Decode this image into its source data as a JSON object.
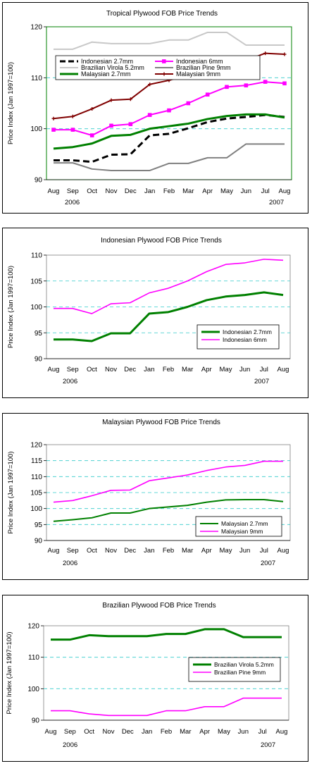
{
  "chart_data": [
    {
      "type": "line",
      "title": "Tropical Plywood FOB Price Trends",
      "ylabel": "Price Index (Jan 1997=100)",
      "xlabel": "",
      "categories": [
        "Aug",
        "Sep",
        "Oct",
        "Nov",
        "Dec",
        "Jan",
        "Feb",
        "Mar",
        "Apr",
        "May",
        "Jun",
        "Jul",
        "Aug"
      ],
      "year_labels": [
        "2006",
        "2007"
      ],
      "ylim": [
        90,
        120
      ],
      "yticks": [
        90,
        100,
        110,
        120
      ],
      "grid": "horizontal dashed",
      "legend_position": "top-left",
      "plot_background": "#ffffff",
      "plot_border": "#008000",
      "series": [
        {
          "name": "Indonesian 2.7mm",
          "color": "#000000",
          "dash": "long-dash",
          "marker": "none",
          "values": [
            93.8,
            93.8,
            93.5,
            94.9,
            95.0,
            98.7,
            99.0,
            100.1,
            101.3,
            102.0,
            102.3,
            102.7,
            102.3
          ]
        },
        {
          "name": "Indonesian 6mm",
          "color": "#ff00ff",
          "dash": "solid",
          "marker": "square",
          "values": [
            99.8,
            99.8,
            98.7,
            100.6,
            100.9,
            102.7,
            103.6,
            105.0,
            106.7,
            108.2,
            108.5,
            109.2,
            108.9
          ]
        },
        {
          "name": "Brazilian Virola 5.2mm",
          "color": "#c8c8c8",
          "dash": "solid",
          "marker": "none",
          "values": [
            115.6,
            115.6,
            117.0,
            116.7,
            116.7,
            116.7,
            117.4,
            117.4,
            118.9,
            118.9,
            116.4,
            116.4,
            116.4
          ]
        },
        {
          "name": "Brazilian Pine 9mm",
          "color": "#808080",
          "dash": "solid",
          "marker": "none",
          "values": [
            93.3,
            93.3,
            92.1,
            91.8,
            91.8,
            91.8,
            93.2,
            93.2,
            94.3,
            94.3,
            97.0,
            97.0,
            97.0
          ]
        },
        {
          "name": "Malaysian 2.7mm",
          "color": "#008000",
          "dash": "solid",
          "marker": "none",
          "values": [
            96.1,
            96.4,
            97.1,
            98.6,
            98.8,
            100.0,
            100.5,
            101.0,
            101.9,
            102.5,
            102.8,
            102.8,
            102.2
          ]
        },
        {
          "name": "Malaysian 9mm",
          "color": "#800000",
          "dash": "solid",
          "marker": "plus",
          "values": [
            102.0,
            102.4,
            103.9,
            105.6,
            105.8,
            108.7,
            109.5,
            110.5,
            111.9,
            113.0,
            113.4,
            114.8,
            114.6
          ]
        }
      ]
    },
    {
      "type": "line",
      "title": "Indonesian Plywood FOB Price Trends",
      "ylabel": "Price Index (Jan 1997=100)",
      "xlabel": "",
      "categories": [
        "Aug",
        "Sep",
        "Oct",
        "Nov",
        "Dec",
        "Jan",
        "Feb",
        "Mar",
        "Apr",
        "May",
        "Jun",
        "Jul",
        "Aug"
      ],
      "year_labels": [
        "2006",
        "2007"
      ],
      "ylim": [
        90,
        110
      ],
      "yticks": [
        90,
        95,
        100,
        105,
        110
      ],
      "grid": "horizontal dashed",
      "legend_position": "bottom-right",
      "series": [
        {
          "name": "Indonesian 2.7mm",
          "color": "#008000",
          "values": [
            93.7,
            93.7,
            93.4,
            94.9,
            94.9,
            98.7,
            99.0,
            100.0,
            101.3,
            102.0,
            102.3,
            102.8,
            102.3
          ]
        },
        {
          "name": "Indonesian 6mm",
          "color": "#ff00ff",
          "values": [
            99.7,
            99.7,
            98.7,
            100.6,
            100.8,
            102.7,
            103.6,
            105.0,
            106.8,
            108.2,
            108.5,
            109.2,
            109.0
          ]
        }
      ]
    },
    {
      "type": "line",
      "title": "Malaysian Plywood FOB Price Trends",
      "ylabel": "Price Index (Jan 1997=100)",
      "xlabel": "",
      "categories": [
        "Aug",
        "Sep",
        "Oct",
        "Nov",
        "Dec",
        "Jan",
        "Feb",
        "Mar",
        "Apr",
        "May",
        "Jun",
        "Jul",
        "Aug"
      ],
      "year_labels": [
        "2006",
        "2007"
      ],
      "ylim": [
        90,
        120
      ],
      "yticks": [
        90,
        95,
        100,
        105,
        110,
        115,
        120
      ],
      "grid": "horizontal dashed",
      "legend_position": "bottom-right",
      "series": [
        {
          "name": "Malaysian 2.7mm",
          "color": "#008000",
          "values": [
            96.0,
            96.5,
            97.1,
            98.6,
            98.6,
            100.0,
            100.5,
            101.0,
            102.0,
            102.7,
            102.8,
            102.8,
            102.2
          ]
        },
        {
          "name": "Malaysian 9mm",
          "color": "#ff00ff",
          "values": [
            102.0,
            102.5,
            104.0,
            105.7,
            105.8,
            108.7,
            109.6,
            110.5,
            111.9,
            113.0,
            113.5,
            114.8,
            114.8
          ]
        }
      ]
    },
    {
      "type": "line",
      "title": "Brazilian Plywood FOB Price Trends",
      "ylabel": "Price Index (Jan 1997=100)",
      "xlabel": "",
      "categories": [
        "Aug",
        "Sep",
        "Oct",
        "Nov",
        "Dec",
        "Jan",
        "Feb",
        "Mar",
        "Apr",
        "May",
        "Jun",
        "Jul",
        "Aug"
      ],
      "year_labels": [
        "2006",
        "2007"
      ],
      "ylim": [
        90,
        120
      ],
      "yticks": [
        90,
        100,
        110,
        120
      ],
      "grid": "horizontal dashed",
      "legend_position": "right",
      "series": [
        {
          "name": "Brazilian Virola 5.2mm",
          "color": "#008000",
          "values": [
            115.6,
            115.6,
            117.0,
            116.7,
            116.7,
            116.7,
            117.4,
            117.4,
            118.9,
            118.9,
            116.4,
            116.4,
            116.4
          ]
        },
        {
          "name": "Brazilian Pine 9mm",
          "color": "#ff00ff",
          "values": [
            93.0,
            93.0,
            92.0,
            91.5,
            91.5,
            91.5,
            93.0,
            93.0,
            94.3,
            94.3,
            97.0,
            97.0,
            97.0
          ]
        }
      ]
    }
  ]
}
